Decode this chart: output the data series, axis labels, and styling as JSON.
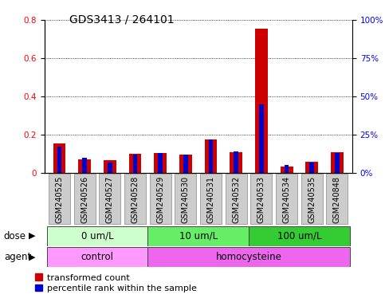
{
  "title": "GDS3413 / 264101",
  "samples": [
    "GSM240525",
    "GSM240526",
    "GSM240527",
    "GSM240528",
    "GSM240529",
    "GSM240530",
    "GSM240531",
    "GSM240532",
    "GSM240533",
    "GSM240534",
    "GSM240535",
    "GSM240848"
  ],
  "red_values": [
    0.155,
    0.072,
    0.065,
    0.1,
    0.105,
    0.095,
    0.175,
    0.11,
    0.755,
    0.032,
    0.06,
    0.11
  ],
  "blue_values_pct": [
    17,
    10,
    7,
    12,
    13,
    12,
    22,
    14,
    45,
    5,
    7,
    13
  ],
  "red_color": "#cc0000",
  "blue_color": "#0000cc",
  "ylim_left": [
    0,
    0.8
  ],
  "ylim_right": [
    0,
    100
  ],
  "yticks_left": [
    0.0,
    0.2,
    0.4,
    0.6,
    0.8
  ],
  "yticks_right": [
    0,
    25,
    50,
    75,
    100
  ],
  "ytick_labels_left": [
    "0",
    "0.2",
    "0.4",
    "0.6",
    "0.8"
  ],
  "ytick_labels_right": [
    "0%",
    "25%",
    "50%",
    "75%",
    "100%"
  ],
  "dose_groups": [
    {
      "label": "0 um/L",
      "start": 0,
      "end": 4,
      "color": "#ccffcc"
    },
    {
      "label": "10 um/L",
      "start": 4,
      "end": 8,
      "color": "#66ee66"
    },
    {
      "label": "100 um/L",
      "start": 8,
      "end": 12,
      "color": "#33cc33"
    }
  ],
  "agent_groups": [
    {
      "label": "control",
      "start": 0,
      "end": 4,
      "color": "#ff99ff"
    },
    {
      "label": "homocysteine",
      "start": 4,
      "end": 12,
      "color": "#ee66ee"
    }
  ],
  "xticklabel_bg": "#cccccc",
  "title_fontsize": 10,
  "tick_fontsize": 7.5,
  "label_fontsize": 8.5,
  "legend_fontsize": 8,
  "bar_width": 0.5,
  "blue_bar_width": 0.18
}
